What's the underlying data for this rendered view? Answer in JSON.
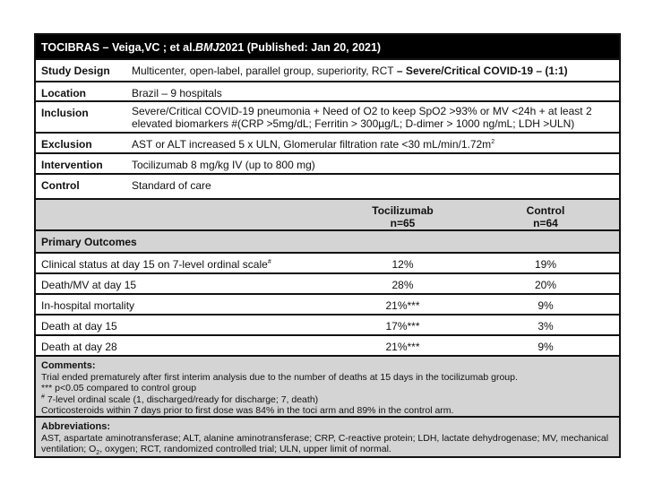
{
  "title": {
    "prefix": "TOCIBRAS – Veiga,VC ; et al. ",
    "journal": "BMJ",
    "suffix": " 2021 (Published: Jan 20, 2021)"
  },
  "design": {
    "study_design_label": "Study Design",
    "study_design_value": "Multicenter, open-label, parallel group, superiority, RCT",
    "study_design_bold": " – Severe/Critical COVID-19 – (1:1)",
    "location_label": "Location",
    "location_value": "Brazil – 9 hospitals",
    "inclusion_label": "Inclusion",
    "inclusion_value": "Severe/Critical COVID-19 pneumonia + Need of O2 to keep SpO2 >93% or MV <24h + at least 2 elevated biomarkers #(CRP >5mg/dL; Ferritin > 300µg/L; D-dimer > 1000 ng/mL; LDH >ULN)",
    "exclusion_label": "Exclusion",
    "exclusion_value": "AST or ALT increased 5 x ULN, Glomerular filtration rate <30 mL/min/1.72m",
    "exclusion_sup": "2",
    "intervention_label": "Intervention",
    "intervention_value": "Tocilizumab 8 mg/kg IV (up to 800 mg)",
    "control_label": "Control",
    "control_value": "Standard of care"
  },
  "outcomes": {
    "col1": "Tocilizumab",
    "col1_n": "n=65",
    "col2": "Control",
    "col2_n": "n=64",
    "section": "Primary Outcomes",
    "rows": [
      {
        "label": "Clinical status at day 15 on 7-level ordinal scale",
        "sup": "#",
        "toci": "12%",
        "control": "19%"
      },
      {
        "label": "Death/MV at day 15",
        "sup": "",
        "toci": "28%",
        "control": "20%"
      },
      {
        "label": "In-hospital mortality",
        "sup": "",
        "toci": "21%***",
        "control": "9%"
      },
      {
        "label": "Death at day 15",
        "sup": "",
        "toci": "17%***",
        "control": "3%"
      },
      {
        "label": "Death at day 28",
        "sup": "",
        "toci": "21%***",
        "control": "9%"
      }
    ]
  },
  "comments": {
    "heading": "Comments:",
    "lines": [
      "Trial ended prematurely after first interim analysis due to the number of deaths at 15 days in the tocilizumab group.",
      "*** p<0.05 compared to control group",
      " 7-level ordinal scale (1, discharged/ready for discharge; 7, death)",
      "Corticosteroids within 7 days prior to first dose was 84% in the toci arm and 89% in the control arm."
    ],
    "hash_sup": "#"
  },
  "abbreviations": {
    "heading": "Abbreviations:",
    "text_a": "AST, aspartate aminotransferase; ALT, alanine aminotransferase; CRP, C-reactive protein; LDH, lactate dehydrogenase; MV, mechanical ventilation; O",
    "sub": "2",
    "text_b": ", oxygen; RCT, randomized controlled trial; ULN, upper limit of normal."
  }
}
